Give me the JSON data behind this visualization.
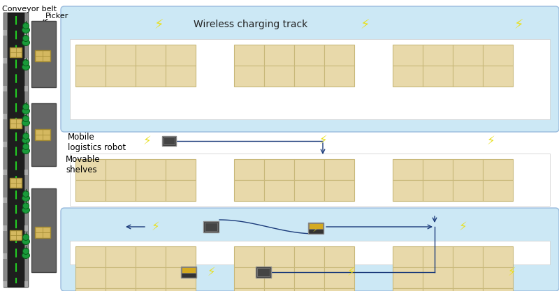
{
  "bg_color": "#ffffff",
  "light_blue": "#cce8f5",
  "shelf_color": "#e8d9aa",
  "shelf_edge": "#c8b87a",
  "conveyor_dark": "#2a2a2a",
  "conveyor_mid": "#555555",
  "conveyor_light": "#888888",
  "green_robot": "#1a9a3a",
  "bolt_color": "#e8e020",
  "arrow_color": "#1a3a7a",
  "robot_dark": "#333333",
  "robot_yellow": "#d4aa20",
  "robot_border": "#888888",
  "white_panel": "#ffffff",
  "title": "Wireless charging track",
  "label_conveyor": "Conveyor belt",
  "label_picker": "Picker",
  "label_robot": "Mobile\nlogistics robot",
  "label_shelves": "Movable\nshelves"
}
